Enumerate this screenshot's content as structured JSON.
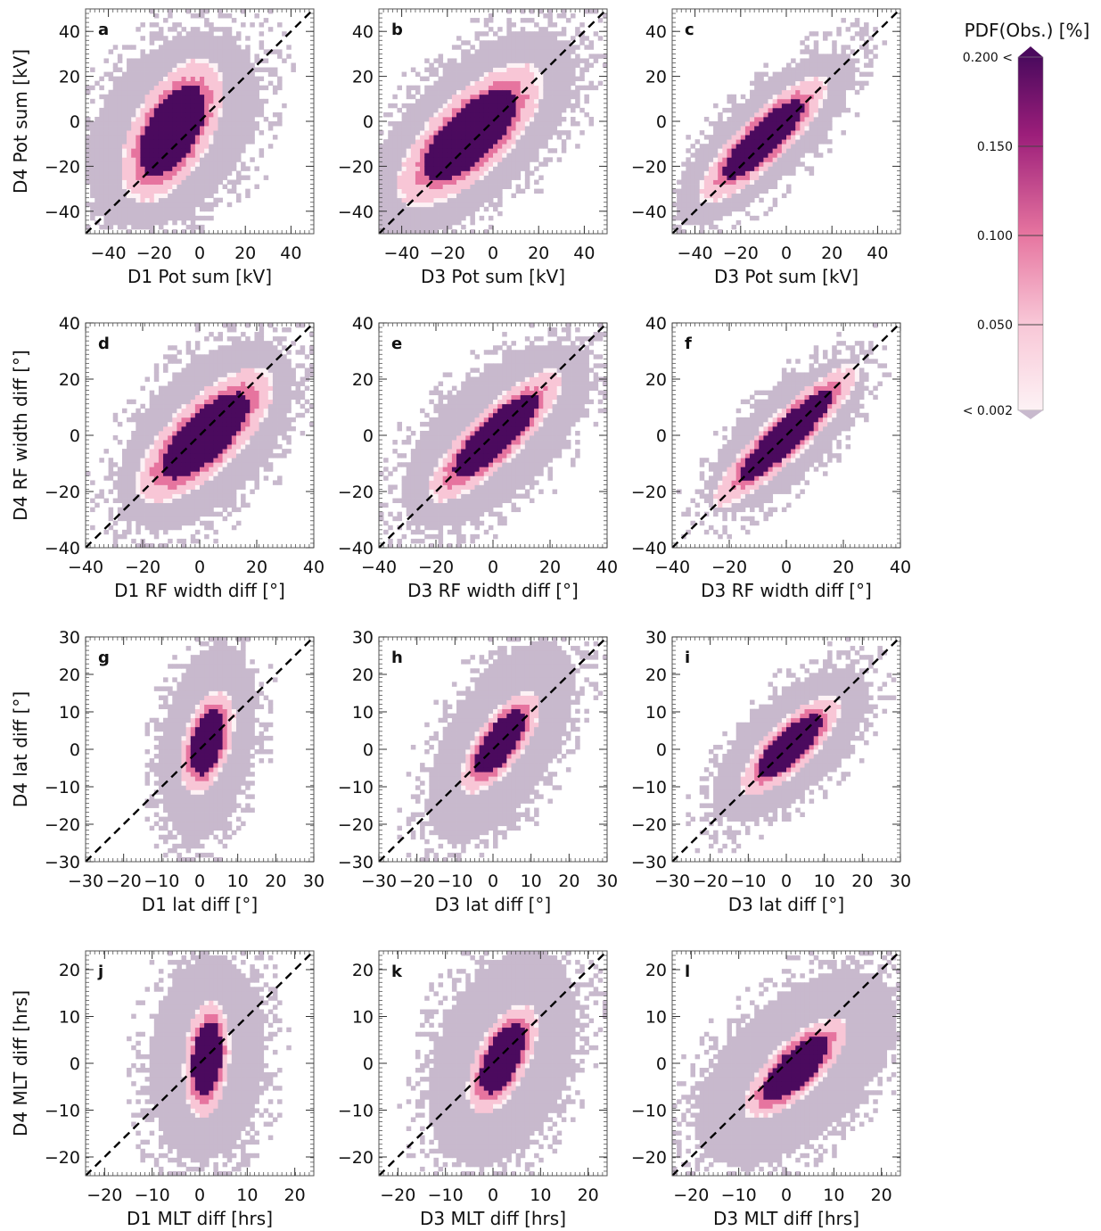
{
  "colorbar": {
    "title": "PDF(Obs.) [%]",
    "levels": [
      {
        "value": 0.2,
        "label": "0.200 <"
      },
      {
        "value": 0.15,
        "label": "0.150"
      },
      {
        "value": 0.1,
        "label": "0.100"
      },
      {
        "value": 0.05,
        "label": "0.050"
      },
      {
        "value": 0.002,
        "label": "< 0.002"
      }
    ],
    "colors": {
      "low": "#fdf2f5",
      "light": "#f8c6d6",
      "mid": "#e6749f",
      "high": "#9c1e7a",
      "max": "#4b0a5e",
      "below": "#c8b9cd"
    }
  },
  "chart_data": [
    {
      "type": "heatmap",
      "panel_label": "a",
      "xlabel": "D1 Pot sum [kV]",
      "ylabel": "D4 Pot sum [kV]",
      "xlim": [
        -50,
        50
      ],
      "ylim": [
        -50,
        50
      ],
      "xticks": [
        -40,
        -20,
        0,
        20,
        40
      ],
      "yticks": [
        -40,
        -20,
        0,
        20,
        40
      ],
      "xtick_labels": [
        "−40",
        "−20",
        "0",
        "20",
        "40"
      ],
      "ytick_labels": [
        "−40",
        "−20",
        "0",
        "20",
        "40"
      ],
      "diagonal": true,
      "core": {
        "cx": -12,
        "cy": -4,
        "rx": 11,
        "ry": 22,
        "angle": 62,
        "outer_rx": 32,
        "outer_ry": 48,
        "outer_angle": 55
      }
    },
    {
      "type": "heatmap",
      "panel_label": "b",
      "xlabel": "D3 Pot sum [kV]",
      "ylabel": "",
      "xlim": [
        -50,
        50
      ],
      "ylim": [
        -50,
        50
      ],
      "xticks": [
        -40,
        -20,
        0,
        20,
        40
      ],
      "yticks": [
        -40,
        -20,
        0,
        20,
        40
      ],
      "xtick_labels": [
        "−40",
        "−20",
        "0",
        "20",
        "40"
      ],
      "ytick_labels": [
        "−40",
        "−20",
        "0",
        "20",
        "40"
      ],
      "diagonal": true,
      "core": {
        "cx": -10,
        "cy": -6,
        "rx": 11,
        "ry": 26,
        "angle": 45,
        "outer_rx": 28,
        "outer_ry": 58,
        "outer_angle": 45
      }
    },
    {
      "type": "heatmap",
      "panel_label": "c",
      "xlabel": "D3 Pot sum [kV]",
      "ylabel": "",
      "xlim": [
        -50,
        50
      ],
      "ylim": [
        -50,
        50
      ],
      "xticks": [
        -40,
        -20,
        0,
        20,
        40
      ],
      "yticks": [
        -40,
        -20,
        0,
        20,
        40
      ],
      "xtick_labels": [
        "−40",
        "−20",
        "0",
        "20",
        "40"
      ],
      "ytick_labels": [
        "−40",
        "−20",
        "0",
        "20",
        "40"
      ],
      "diagonal": true,
      "core": {
        "cx": -10,
        "cy": -8,
        "rx": 7,
        "ry": 24,
        "angle": 45,
        "outer_rx": 18,
        "outer_ry": 52,
        "outer_angle": 45
      }
    },
    {
      "type": "heatmap",
      "panel_label": "d",
      "xlabel": "D1 RF width diff [°]",
      "ylabel": "D4 RF width diff [°]",
      "xlim": [
        -40,
        40
      ],
      "ylim": [
        -40,
        40
      ],
      "xticks": [
        -40,
        -20,
        0,
        20,
        40
      ],
      "yticks": [
        -40,
        -20,
        0,
        20,
        40
      ],
      "xtick_labels": [
        "−40",
        "−20",
        "0",
        "20",
        "40"
      ],
      "ytick_labels": [
        "−40",
        "−20",
        "0",
        "20",
        "40"
      ],
      "diagonal": true,
      "core": {
        "cx": 2,
        "cy": 0,
        "rx": 8,
        "ry": 20,
        "angle": 45,
        "outer_rx": 22,
        "outer_ry": 40,
        "outer_angle": 50
      }
    },
    {
      "type": "heatmap",
      "panel_label": "e",
      "xlabel": "D3 RF width diff [°]",
      "ylabel": "",
      "xlim": [
        -40,
        40
      ],
      "ylim": [
        -40,
        40
      ],
      "xticks": [
        -40,
        -20,
        0,
        20,
        40
      ],
      "yticks": [
        -40,
        -20,
        0,
        20,
        40
      ],
      "xtick_labels": [
        "−40",
        "−20",
        "0",
        "20",
        "40"
      ],
      "ytick_labels": [
        "−40",
        "−20",
        "0",
        "20",
        "40"
      ],
      "diagonal": true,
      "core": {
        "cx": 1,
        "cy": 0,
        "rx": 6,
        "ry": 20,
        "angle": 45,
        "outer_rx": 20,
        "outer_ry": 42,
        "outer_angle": 45
      }
    },
    {
      "type": "heatmap",
      "panel_label": "f",
      "xlabel": "D3 RF width diff [°]",
      "ylabel": "",
      "xlim": [
        -40,
        40
      ],
      "ylim": [
        -40,
        40
      ],
      "xticks": [
        -40,
        -20,
        0,
        20,
        40
      ],
      "yticks": [
        -40,
        -20,
        0,
        20,
        40
      ],
      "xtick_labels": [
        "−40",
        "−20",
        "0",
        "20",
        "40"
      ],
      "ytick_labels": [
        "−40",
        "−20",
        "0",
        "20",
        "40"
      ],
      "diagonal": true,
      "core": {
        "cx": 0,
        "cy": 0,
        "rx": 5,
        "ry": 22,
        "angle": 45,
        "outer_rx": 14,
        "outer_ry": 36,
        "outer_angle": 45
      }
    },
    {
      "type": "heatmap",
      "panel_label": "g",
      "xlabel": "D1 lat diff [°]",
      "ylabel": "D4 lat diff [°]",
      "xlim": [
        -30,
        30
      ],
      "ylim": [
        -30,
        30
      ],
      "xticks": [
        -30,
        -20,
        -10,
        0,
        10,
        20,
        30
      ],
      "yticks": [
        -30,
        -20,
        -10,
        0,
        10,
        20,
        30
      ],
      "xtick_labels": [
        "−30",
        "−20",
        "−10",
        "0",
        "10",
        "20",
        "30"
      ],
      "ytick_labels": [
        "−30",
        "−20",
        "−10",
        "0",
        "10",
        "20",
        "30"
      ],
      "diagonal": true,
      "core": {
        "cx": 2,
        "cy": 2,
        "rx": 4,
        "ry": 9,
        "angle": 75,
        "outer_rx": 12,
        "outer_ry": 26,
        "outer_angle": 80
      }
    },
    {
      "type": "heatmap",
      "panel_label": "h",
      "xlabel": "D3 lat diff [°]",
      "ylabel": "",
      "xlim": [
        -30,
        30
      ],
      "ylim": [
        -30,
        30
      ],
      "xticks": [
        -30,
        -20,
        -10,
        0,
        10,
        20,
        30
      ],
      "yticks": [
        -30,
        -20,
        -10,
        0,
        10,
        20,
        30
      ],
      "xtick_labels": [
        "−30",
        "−20",
        "−10",
        "0",
        "10",
        "20",
        "30"
      ],
      "ytick_labels": [
        "−30",
        "−20",
        "−10",
        "0",
        "10",
        "20",
        "30"
      ],
      "diagonal": true,
      "core": {
        "cx": 2,
        "cy": 2,
        "rx": 4,
        "ry": 10,
        "angle": 55,
        "outer_rx": 14,
        "outer_ry": 30,
        "outer_angle": 60
      }
    },
    {
      "type": "heatmap",
      "panel_label": "i",
      "xlabel": "D3 lat diff [°]",
      "ylabel": "",
      "xlim": [
        -30,
        30
      ],
      "ylim": [
        -30,
        30
      ],
      "xticks": [
        -30,
        -20,
        -10,
        0,
        10,
        20,
        30
      ],
      "yticks": [
        -30,
        -20,
        -10,
        0,
        10,
        20,
        30
      ],
      "xtick_labels": [
        "−30",
        "−20",
        "−10",
        "0",
        "10",
        "20",
        "30"
      ],
      "ytick_labels": [
        "−30",
        "−20",
        "−10",
        "0",
        "10",
        "20",
        "30"
      ],
      "diagonal": true,
      "core": {
        "cx": 1,
        "cy": 1,
        "rx": 4,
        "ry": 11,
        "angle": 45,
        "outer_rx": 12,
        "outer_ry": 26,
        "outer_angle": 45
      }
    },
    {
      "type": "heatmap",
      "panel_label": "j",
      "xlabel": "D1 MLT diff [hrs]",
      "ylabel": "D4 MLT diff [hrs]",
      "xlim": [
        -24,
        24
      ],
      "ylim": [
        -24,
        24
      ],
      "xticks": [
        -20,
        -10,
        0,
        10,
        20
      ],
      "yticks": [
        -20,
        -10,
        0,
        10,
        20
      ],
      "xtick_labels": [
        "−20",
        "−10",
        "0",
        "10",
        "20"
      ],
      "ytick_labels": [
        "−20",
        "−10",
        "0",
        "10",
        "20"
      ],
      "diagonal": true,
      "core": {
        "cx": 1.5,
        "cy": 1,
        "rx": 3,
        "ry": 8,
        "angle": 85,
        "outer_rx": 12,
        "outer_ry": 22,
        "outer_angle": 85
      }
    },
    {
      "type": "heatmap",
      "panel_label": "k",
      "xlabel": "D3 MLT diff [hrs]",
      "ylabel": "",
      "xlim": [
        -24,
        24
      ],
      "ylim": [
        -24,
        24
      ],
      "xticks": [
        -20,
        -10,
        0,
        10,
        20
      ],
      "yticks": [
        -20,
        -10,
        0,
        10,
        20
      ],
      "xtick_labels": [
        "−20",
        "−10",
        "0",
        "10",
        "20"
      ],
      "ytick_labels": [
        "−20",
        "−10",
        "0",
        "10",
        "20"
      ],
      "diagonal": true,
      "core": {
        "cx": 2,
        "cy": 1,
        "rx": 3.5,
        "ry": 8,
        "angle": 65,
        "outer_rx": 14,
        "outer_ry": 24,
        "outer_angle": 70
      }
    },
    {
      "type": "heatmap",
      "panel_label": "l",
      "xlabel": "D3 MLT diff [hrs]",
      "ylabel": "",
      "xlim": [
        -24,
        24
      ],
      "ylim": [
        -24,
        24
      ],
      "xticks": [
        -20,
        -10,
        0,
        10,
        20
      ],
      "yticks": [
        -20,
        -10,
        0,
        10,
        20
      ],
      "xtick_labels": [
        "−20",
        "−10",
        "0",
        "10",
        "20"
      ],
      "ytick_labels": [
        "−20",
        "−10",
        "0",
        "10",
        "20"
      ],
      "diagonal": true,
      "core": {
        "cx": 2,
        "cy": -1,
        "rx": 3.5,
        "ry": 9,
        "angle": 45,
        "outer_rx": 14,
        "outer_ry": 26,
        "outer_angle": 45
      }
    }
  ]
}
